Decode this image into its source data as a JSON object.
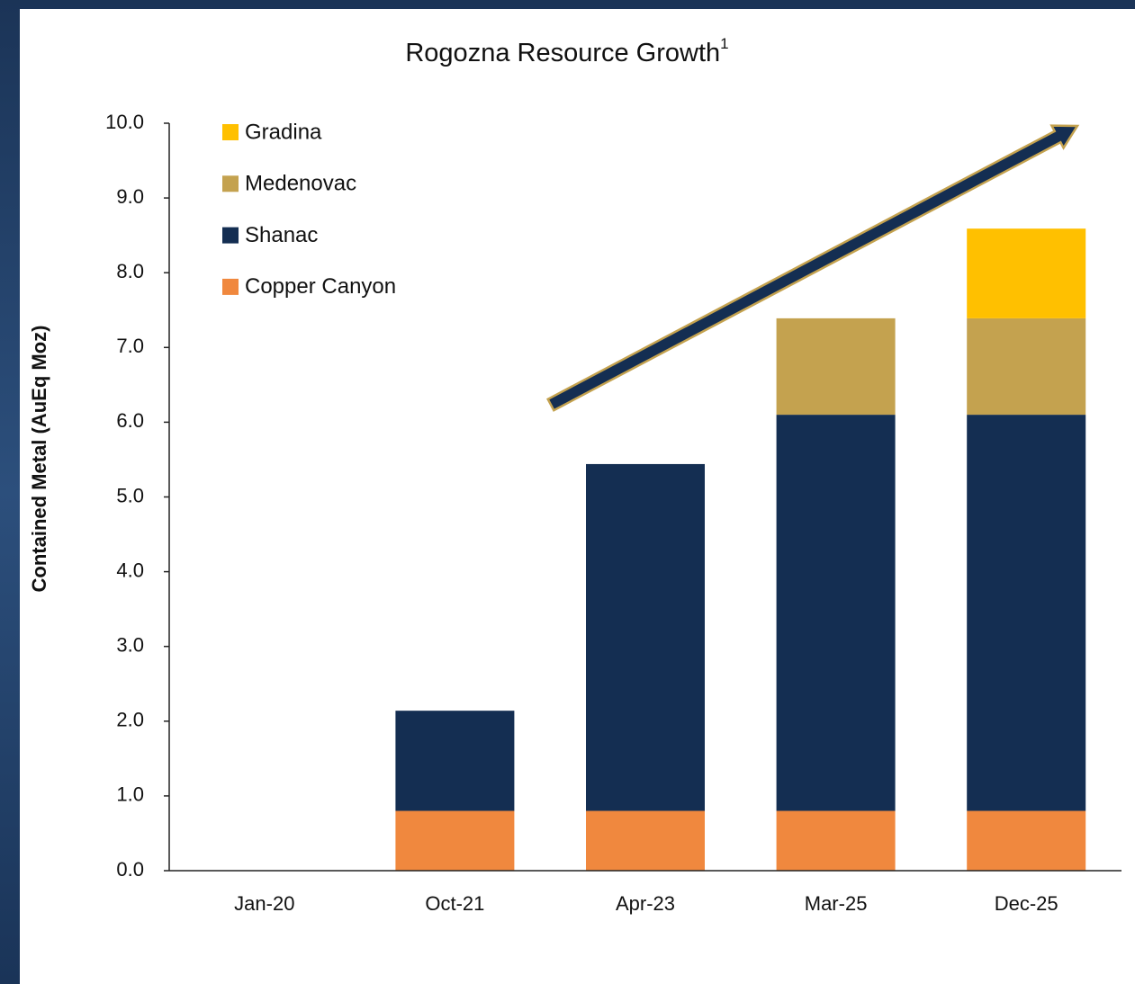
{
  "chart_data": {
    "type": "stacked_bar",
    "title": "Rogozna Resource Growth",
    "title_superscript": "1",
    "y_label": "Contained Metal (AuEq Moz)",
    "categories": [
      "Jan-20",
      "Oct-21",
      "Apr-23",
      "Mar-25",
      "Dec-25"
    ],
    "series": [
      {
        "name": "Copper Canyon",
        "color": "#f0883e",
        "values": [
          0,
          0.8,
          0.8,
          0.8,
          0.8
        ]
      },
      {
        "name": "Shanac",
        "color": "#142e52",
        "values": [
          0,
          1.34,
          4.64,
          5.3,
          5.3
        ]
      },
      {
        "name": "Medenovac",
        "color": "#c4a24f",
        "values": [
          0,
          0,
          0,
          1.29,
          1.29
        ]
      },
      {
        "name": "Gradina",
        "color": "#ffc000",
        "values": [
          0,
          0,
          0,
          0,
          1.2
        ]
      }
    ],
    "ylim": [
      0,
      10
    ],
    "yticks": [
      {
        "value": 0,
        "label": "0.0"
      },
      {
        "value": 1,
        "label": "1.0"
      },
      {
        "value": 2,
        "label": "2.0"
      },
      {
        "value": 3,
        "label": "3.0"
      },
      {
        "value": 4,
        "label": "4.0"
      },
      {
        "value": 5,
        "label": "5.0"
      },
      {
        "value": 6,
        "label": "6.0"
      },
      {
        "value": 7,
        "label": "7.0"
      },
      {
        "value": 8,
        "label": "8.0"
      },
      {
        "value": 9,
        "label": "9.0"
      },
      {
        "value": 10,
        "label": "10.0"
      }
    ],
    "legend": "top-left",
    "grid": false
  }
}
